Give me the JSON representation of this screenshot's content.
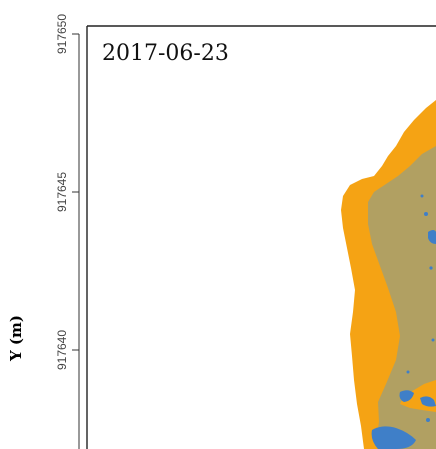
{
  "chart_data": {
    "type": "map",
    "ylabel": "Y (m)",
    "ylim": [
      917635.2,
      917650
    ],
    "y_ticks": [
      917640,
      917645,
      917650
    ],
    "y_tick_labels": [
      "917640",
      "917645",
      "917650"
    ],
    "panel_label": "2017-06-23",
    "classes": [
      {
        "name": "orange-zone",
        "color": "#f5a314"
      },
      {
        "name": "olive-zone",
        "color": "#b1a062"
      },
      {
        "name": "water",
        "color": "#3f7fc8"
      }
    ]
  }
}
